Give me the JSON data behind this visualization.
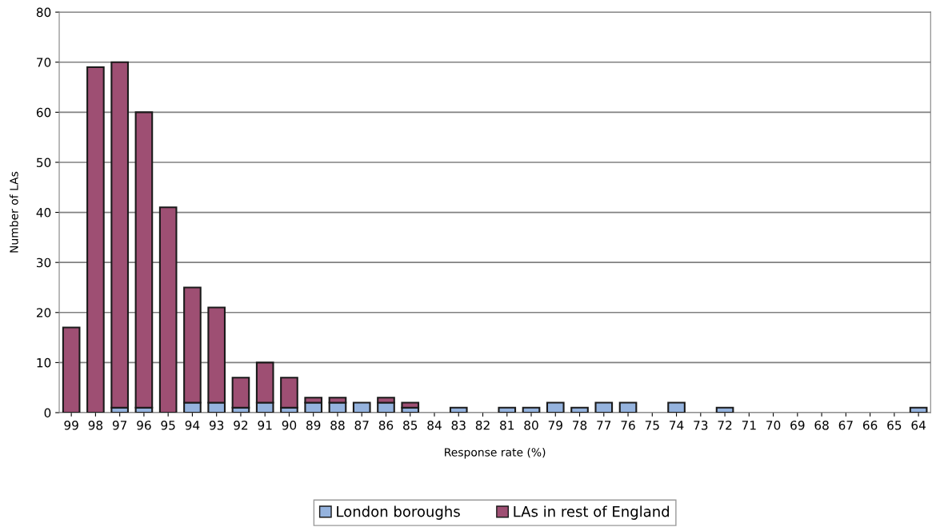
{
  "chart_data": {
    "type": "bar",
    "stacked": true,
    "xlabel": "Response rate (%)",
    "ylabel": "Number of LAs",
    "categories": [
      "99",
      "98",
      "97",
      "96",
      "95",
      "94",
      "93",
      "92",
      "91",
      "90",
      "89",
      "88",
      "87",
      "86",
      "85",
      "84",
      "83",
      "82",
      "81",
      "80",
      "79",
      "78",
      "77",
      "76",
      "75",
      "74",
      "73",
      "72",
      "71",
      "70",
      "69",
      "68",
      "67",
      "66",
      "65",
      "64"
    ],
    "series": [
      {
        "name": "London boroughs",
        "color": "#95b3de",
        "values": [
          0,
          0,
          1,
          1,
          0,
          2,
          2,
          1,
          2,
          1,
          2,
          2,
          2,
          2,
          1,
          0,
          1,
          0,
          1,
          1,
          2,
          1,
          2,
          2,
          0,
          2,
          0,
          1,
          0,
          0,
          0,
          0,
          0,
          0,
          0,
          1
        ]
      },
      {
        "name": "LAs in rest of England",
        "color": "#9e4f73",
        "values": [
          17,
          69,
          69,
          59,
          41,
          23,
          19,
          6,
          8,
          6,
          1,
          1,
          0,
          1,
          1,
          0,
          0,
          0,
          0,
          0,
          0,
          0,
          0,
          0,
          0,
          0,
          0,
          0,
          0,
          0,
          0,
          0,
          0,
          0,
          0,
          0
        ]
      }
    ],
    "ylim": [
      0,
      80
    ],
    "yticks": [
      0,
      10,
      20,
      30,
      40,
      50,
      60,
      70,
      80
    ],
    "grid": "y",
    "legend": "bottom"
  }
}
